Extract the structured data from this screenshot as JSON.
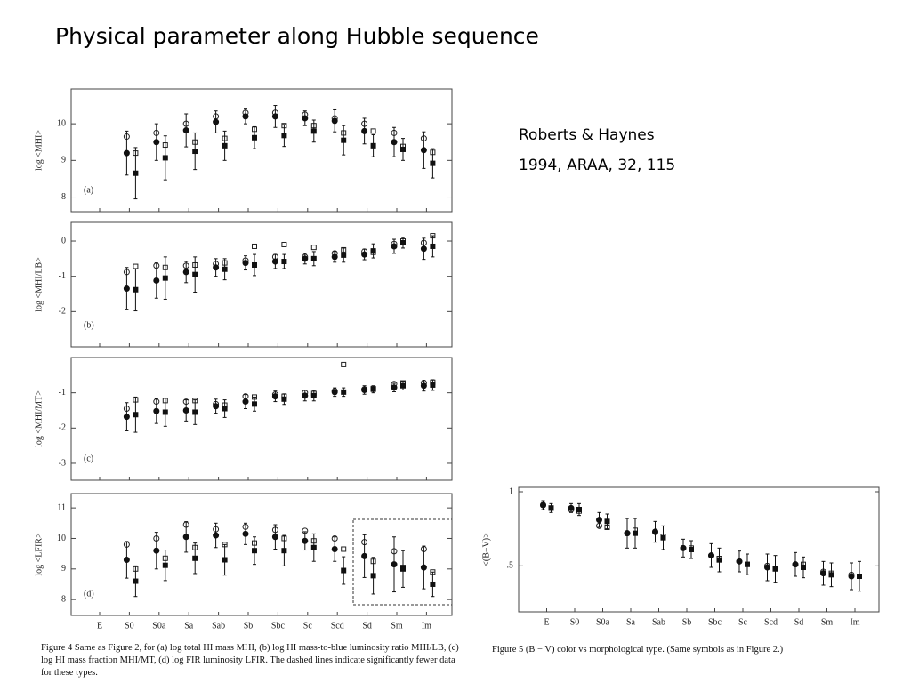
{
  "title": "Physical parameter along Hubble sequence",
  "reference": [
    "Roberts & Haynes",
    "1994, ARAA, 32, 115"
  ],
  "figure4_caption": "Figure 4   Same as Figure 2, for (a) log total HI mass MHI, (b) log HI mass-to-blue luminosity ratio MHI/LB, (c) log HI mass fraction MHI/MT, (d) log FIR luminosity LFIR. The dashed lines indicate significantly fewer data for these types.",
  "figure5_caption": "Figure 5   (B − V) color vs morphological type. (Same symbols as in Figure 2.)",
  "chart_data": [
    {
      "type": "scatter",
      "panel_label": "(a)",
      "ylabel": "log <MHI>",
      "ylim": [
        7.6,
        10.95
      ],
      "yticks": [
        8,
        9,
        10
      ],
      "series": [
        {
          "marker": "circle-open",
          "color": "#222",
          "values": [
            null,
            9.65,
            9.75,
            10.0,
            10.2,
            10.3,
            10.3,
            10.25,
            10.15,
            10.0,
            9.75,
            9.6
          ]
        },
        {
          "marker": "circle-filled",
          "color": "#111",
          "values": [
            null,
            9.2,
            9.5,
            9.82,
            10.05,
            10.2,
            10.2,
            10.15,
            10.08,
            9.8,
            9.5,
            9.28
          ],
          "errors": [
            null,
            0.6,
            0.5,
            0.45,
            0.3,
            0.2,
            0.3,
            0.2,
            0.3,
            0.35,
            0.4,
            0.5
          ]
        },
        {
          "marker": "square-open",
          "color": "#222",
          "values": [
            null,
            9.2,
            9.42,
            9.5,
            9.6,
            9.85,
            9.95,
            9.95,
            9.75,
            9.8,
            9.38,
            9.22
          ]
        },
        {
          "marker": "square-filled",
          "color": "#111",
          "values": [
            null,
            8.65,
            9.07,
            9.25,
            9.4,
            9.62,
            9.68,
            9.8,
            9.55,
            9.4,
            9.3,
            8.92
          ],
          "errors": [
            null,
            0.7,
            0.6,
            0.5,
            0.4,
            0.3,
            0.3,
            0.3,
            0.4,
            0.3,
            0.3,
            0.4
          ]
        }
      ]
    },
    {
      "type": "scatter",
      "panel_label": "(b)",
      "ylabel": "log <MHI/LB>",
      "ylim": [
        -3.0,
        0.53
      ],
      "yticks": [
        -2,
        -1,
        0
      ],
      "series": [
        {
          "marker": "circle-open",
          "color": "#222",
          "values": [
            null,
            -0.88,
            -0.7,
            -0.7,
            -0.65,
            -0.55,
            -0.45,
            -0.45,
            -0.35,
            -0.3,
            -0.08,
            -0.05
          ]
        },
        {
          "marker": "circle-filled",
          "color": "#111",
          "values": [
            null,
            -1.35,
            -1.12,
            -0.88,
            -0.75,
            -0.62,
            -0.58,
            -0.5,
            -0.45,
            -0.38,
            -0.15,
            -0.22
          ],
          "errors": [
            null,
            0.6,
            0.5,
            0.3,
            0.25,
            0.2,
            0.2,
            0.15,
            0.15,
            0.15,
            0.2,
            0.3
          ]
        },
        {
          "marker": "square-open",
          "color": "#222",
          "values": [
            null,
            -0.72,
            -0.75,
            -0.68,
            -0.62,
            -0.15,
            -0.1,
            -0.18,
            -0.25,
            -0.32,
            0.0,
            0.15
          ]
        },
        {
          "marker": "square-filled",
          "color": "#111",
          "values": [
            null,
            -1.38,
            -1.05,
            -0.95,
            -0.8,
            -0.68,
            -0.58,
            -0.5,
            -0.4,
            -0.28,
            -0.05,
            -0.15
          ],
          "errors": [
            null,
            0.6,
            0.6,
            0.5,
            0.3,
            0.3,
            0.2,
            0.2,
            0.2,
            0.2,
            0.15,
            0.3
          ]
        }
      ]
    },
    {
      "type": "scatter",
      "panel_label": "(c)",
      "ylabel": "log <MHI/MT>",
      "ylim": [
        -3.48,
        0.0
      ],
      "yticks": [
        -3,
        -2,
        -1
      ],
      "series": [
        {
          "marker": "circle-open",
          "color": "#222",
          "values": [
            null,
            -1.45,
            -1.25,
            -1.25,
            -1.32,
            -1.1,
            -1.05,
            -1.0,
            -0.95,
            -0.9,
            -0.75,
            -0.72
          ]
        },
        {
          "marker": "circle-filled",
          "color": "#111",
          "values": [
            null,
            -1.68,
            -1.52,
            -1.5,
            -1.38,
            -1.25,
            -1.1,
            -1.08,
            -0.98,
            -0.92,
            -0.85,
            -0.8
          ],
          "errors": [
            null,
            0.4,
            0.35,
            0.3,
            0.2,
            0.2,
            0.15,
            0.15,
            0.12,
            0.12,
            0.12,
            0.15
          ]
        },
        {
          "marker": "square-open",
          "color": "#222",
          "values": [
            null,
            -1.2,
            -1.22,
            -1.22,
            -1.35,
            -1.12,
            -1.1,
            -1.02,
            -0.2,
            -0.88,
            -0.72,
            -0.7
          ]
        },
        {
          "marker": "square-filled",
          "color": "#111",
          "values": [
            null,
            -1.62,
            -1.55,
            -1.55,
            -1.45,
            -1.32,
            -1.18,
            -1.08,
            -0.98,
            -0.9,
            -0.8,
            -0.78
          ],
          "errors": [
            null,
            0.5,
            0.4,
            0.35,
            0.25,
            0.2,
            0.15,
            0.15,
            0.12,
            0.1,
            0.12,
            0.15
          ]
        }
      ]
    },
    {
      "type": "scatter",
      "panel_label": "(d)",
      "ylabel": "log <LFIR>",
      "ylim": [
        7.48,
        11.47
      ],
      "yticks": [
        8,
        9,
        10,
        11
      ],
      "categories": [
        "E",
        "S0",
        "S0a",
        "Sa",
        "Sab",
        "Sb",
        "Sbc",
        "Sc",
        "Scd",
        "Sd",
        "Sm",
        "Im"
      ],
      "series": [
        {
          "marker": "circle-open",
          "color": "#222",
          "values": [
            null,
            9.8,
            10.0,
            10.45,
            10.3,
            10.38,
            10.28,
            10.25,
            10.0,
            9.88,
            9.58,
            9.65
          ]
        },
        {
          "marker": "circle-filled",
          "color": "#111",
          "values": [
            null,
            9.3,
            9.6,
            10.05,
            10.1,
            10.15,
            10.05,
            9.92,
            9.65,
            9.42,
            9.15,
            9.05
          ],
          "errors": [
            null,
            0.6,
            0.6,
            0.5,
            0.4,
            0.35,
            0.4,
            0.3,
            0.4,
            0.7,
            0.9,
            0.7
          ]
        },
        {
          "marker": "square-open",
          "color": "#222",
          "values": [
            null,
            9.0,
            9.35,
            9.7,
            9.8,
            9.85,
            10.0,
            9.92,
            9.65,
            9.25,
            9.05,
            8.9
          ]
        },
        {
          "marker": "square-filled",
          "color": "#111",
          "values": [
            null,
            8.6,
            9.12,
            9.35,
            9.3,
            9.6,
            9.6,
            9.7,
            8.95,
            8.78,
            9.0,
            8.5
          ],
          "errors": [
            null,
            0.5,
            0.5,
            0.5,
            0.5,
            0.45,
            0.5,
            0.45,
            0.45,
            0.6,
            0.6,
            0.4
          ]
        }
      ]
    },
    {
      "type": "scatter",
      "ylabel": "<(B−V)>",
      "ylim": [
        0.19,
        1.03
      ],
      "yticks": [
        {
          "value": 0.5,
          "label": ".5"
        },
        1
      ],
      "categories": [
        "E",
        "S0",
        "S0a",
        "Sa",
        "Sab",
        "Sb",
        "Sbc",
        "Sc",
        "Scd",
        "Sd",
        "Sm",
        "Im"
      ],
      "series": [
        {
          "marker": "circle-open",
          "color": "#222",
          "values": [
            0.91,
            0.88,
            0.77,
            0.72,
            0.73,
            0.62,
            0.57,
            0.53,
            0.5,
            0.51,
            0.46,
            0.44
          ]
        },
        {
          "marker": "circle-filled",
          "color": "#111",
          "values": [
            0.91,
            0.89,
            0.81,
            0.72,
            0.73,
            0.62,
            0.57,
            0.53,
            0.49,
            0.51,
            0.45,
            0.43
          ],
          "errors": [
            0.03,
            0.03,
            0.05,
            0.1,
            0.07,
            0.06,
            0.08,
            0.07,
            0.09,
            0.08,
            0.08,
            0.09
          ]
        },
        {
          "marker": "square-open",
          "color": "#222",
          "values": [
            0.89,
            0.87,
            0.76,
            0.74,
            0.7,
            0.62,
            0.55,
            0.51,
            0.48,
            0.51,
            0.45,
            0.43
          ]
        },
        {
          "marker": "square-filled",
          "color": "#111",
          "values": [
            0.89,
            0.88,
            0.8,
            0.72,
            0.69,
            0.61,
            0.54,
            0.51,
            0.48,
            0.49,
            0.44,
            0.43
          ],
          "errors": [
            0.03,
            0.04,
            0.05,
            0.1,
            0.08,
            0.06,
            0.08,
            0.07,
            0.09,
            0.07,
            0.08,
            0.1
          ]
        }
      ]
    }
  ]
}
